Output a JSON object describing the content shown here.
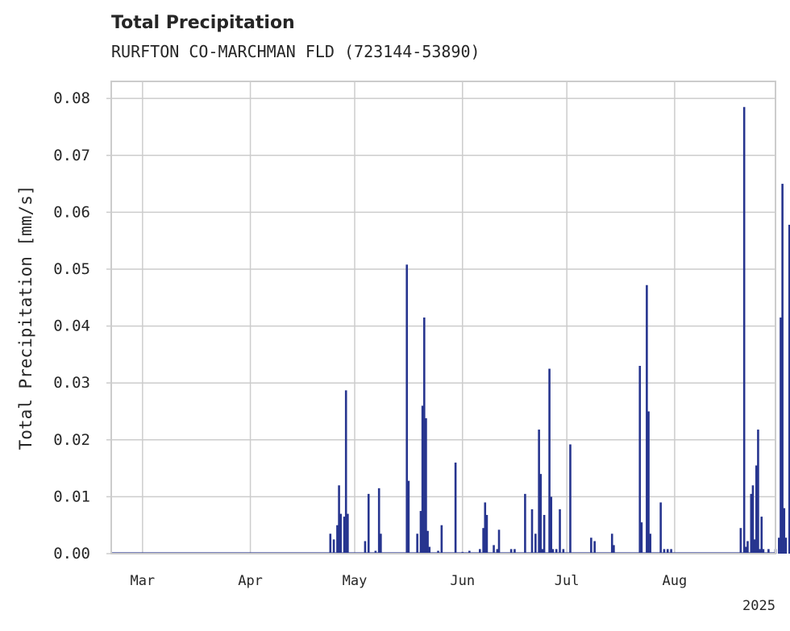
{
  "chart_data": {
    "type": "bar",
    "title": "Total Precipitation",
    "subtitle": "RURFTON CO-MARCHMAN FLD (723144-53890)",
    "ylabel": "Total Precipitation [mm/s]",
    "xlabel": "",
    "year_label": "2025",
    "ylim": [
      0,
      0.083
    ],
    "xlim": [
      "2025-02-20",
      "2025-08-30"
    ],
    "grid": true,
    "color": "#27358f",
    "yticks": [
      "0.00",
      "0.01",
      "0.02",
      "0.03",
      "0.04",
      "0.05",
      "0.06",
      "0.07",
      "0.08"
    ],
    "xticks": [
      {
        "date": "2025-03-01",
        "label": "Mar"
      },
      {
        "date": "2025-04-01",
        "label": "Apr"
      },
      {
        "date": "2025-05-01",
        "label": "May"
      },
      {
        "date": "2025-06-01",
        "label": "Jun"
      },
      {
        "date": "2025-07-01",
        "label": "Jul"
      },
      {
        "date": "2025-08-01",
        "label": "Aug"
      }
    ],
    "points": [
      [
        "2025-04-24",
        0.0035
      ],
      [
        "2025-04-25",
        0.0025
      ],
      [
        "2025-04-26",
        0.005
      ],
      [
        "2025-04-26T12",
        0.012
      ],
      [
        "2025-04-27",
        0.007
      ],
      [
        "2025-04-28",
        0.0065
      ],
      [
        "2025-04-28T12",
        0.0287
      ],
      [
        "2025-04-29",
        0.007
      ],
      [
        "2025-05-04",
        0.0022
      ],
      [
        "2025-05-05",
        0.0105
      ],
      [
        "2025-05-07",
        0.0005
      ],
      [
        "2025-05-08",
        0.0115
      ],
      [
        "2025-05-08T12",
        0.0035
      ],
      [
        "2025-05-16",
        0.0508
      ],
      [
        "2025-05-16T12",
        0.0128
      ],
      [
        "2025-05-19",
        0.0035
      ],
      [
        "2025-05-20",
        0.0075
      ],
      [
        "2025-05-20T12",
        0.026
      ],
      [
        "2025-05-21",
        0.0415
      ],
      [
        "2025-05-21T12",
        0.0238
      ],
      [
        "2025-05-22",
        0.004
      ],
      [
        "2025-05-22T12",
        0.0012
      ],
      [
        "2025-05-25",
        0.0005
      ],
      [
        "2025-05-26",
        0.005
      ],
      [
        "2025-05-30",
        0.016
      ],
      [
        "2025-06-01",
        0.0003
      ],
      [
        "2025-06-03",
        0.0005
      ],
      [
        "2025-06-06",
        0.0008
      ],
      [
        "2025-06-07",
        0.0045
      ],
      [
        "2025-06-07T12",
        0.009
      ],
      [
        "2025-06-08",
        0.0068
      ],
      [
        "2025-06-10",
        0.0015
      ],
      [
        "2025-06-11",
        0.0008
      ],
      [
        "2025-06-11T12",
        0.0042
      ],
      [
        "2025-06-15",
        0.0008
      ],
      [
        "2025-06-16",
        0.0008
      ],
      [
        "2025-06-19",
        0.0105
      ],
      [
        "2025-06-21",
        0.0078
      ],
      [
        "2025-06-22",
        0.0035
      ],
      [
        "2025-06-23",
        0.0218
      ],
      [
        "2025-06-23T12",
        0.014
      ],
      [
        "2025-06-24",
        0.0008
      ],
      [
        "2025-06-24T12",
        0.0068
      ],
      [
        "2025-06-26",
        0.0325
      ],
      [
        "2025-06-26T12",
        0.01
      ],
      [
        "2025-06-27",
        0.0008
      ],
      [
        "2025-06-28",
        0.0008
      ],
      [
        "2025-06-29",
        0.0078
      ],
      [
        "2025-06-30",
        0.0008
      ],
      [
        "2025-07-02",
        0.0192
      ],
      [
        "2025-07-08",
        0.0028
      ],
      [
        "2025-07-09",
        0.0022
      ],
      [
        "2025-07-14",
        0.0035
      ],
      [
        "2025-07-14T12",
        0.0015
      ],
      [
        "2025-07-22",
        0.033
      ],
      [
        "2025-07-22T12",
        0.0055
      ],
      [
        "2025-07-24",
        0.0472
      ],
      [
        "2025-07-24T12",
        0.025
      ],
      [
        "2025-07-25",
        0.0035
      ],
      [
        "2025-07-28",
        0.009
      ],
      [
        "2025-07-29",
        0.0008
      ],
      [
        "2025-07-30",
        0.0008
      ],
      [
        "2025-07-31",
        0.0008
      ],
      [
        "2025-08-20",
        0.0045
      ],
      [
        "2025-08-21",
        0.0785
      ],
      [
        "2025-08-21T12",
        0.0012
      ],
      [
        "2025-08-22",
        0.0022
      ],
      [
        "2025-08-23",
        0.0105
      ],
      [
        "2025-08-23T12",
        0.012
      ],
      [
        "2025-08-24",
        0.0025
      ],
      [
        "2025-08-24T12",
        0.0155
      ],
      [
        "2025-08-25",
        0.0218
      ],
      [
        "2025-08-25T12",
        0.0008
      ],
      [
        "2025-08-26",
        0.0065
      ],
      [
        "2025-08-26T12",
        0.0008
      ],
      [
        "2025-08-28",
        0.0008
      ],
      [
        "2025-08-30",
        0.0008
      ],
      [
        "2025-08-31",
        0.0028
      ],
      [
        "2025-08-31T12",
        0.0415
      ],
      [
        "2025-09-01",
        0.065
      ],
      [
        "2025-09-01T12",
        0.008
      ],
      [
        "2025-09-02",
        0.0028
      ],
      [
        "2025-09-03",
        0.0578
      ],
      [
        "2025-09-03T12",
        0.0028
      ],
      [
        "2025-09-04",
        0.004
      ],
      [
        "2025-09-04T12",
        0.0008
      ]
    ]
  }
}
